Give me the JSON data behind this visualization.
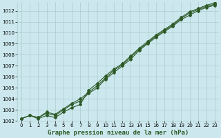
{
  "title": "Graphe pression niveau de la mer (hPa)",
  "background_color": "#cce8ee",
  "grid_color": "#aacccc",
  "line_color": "#2d5a27",
  "x_ticks": [
    0,
    1,
    2,
    3,
    4,
    5,
    6,
    7,
    8,
    9,
    10,
    11,
    12,
    13,
    14,
    15,
    16,
    17,
    18,
    19,
    20,
    21,
    22,
    23
  ],
  "ylim": [
    1002,
    1012.8
  ],
  "xlim": [
    -0.5,
    23.5
  ],
  "y_ticks": [
    1002,
    1003,
    1004,
    1005,
    1006,
    1007,
    1008,
    1009,
    1010,
    1011,
    1012
  ],
  "line1": [
    1002.2,
    1002.5,
    1002.3,
    1002.8,
    1002.6,
    1003.1,
    1003.6,
    1004.0,
    1004.6,
    1005.2,
    1005.9,
    1006.6,
    1007.1,
    1007.8,
    1008.5,
    1009.1,
    1009.7,
    1010.2,
    1010.7,
    1011.3,
    1011.8,
    1012.1,
    1012.4,
    1012.6
  ],
  "line2": [
    1002.2,
    1002.5,
    1002.2,
    1002.5,
    1002.3,
    1002.8,
    1003.2,
    1003.5,
    1004.8,
    1005.4,
    1006.1,
    1006.7,
    1007.2,
    1007.9,
    1008.6,
    1009.2,
    1009.8,
    1010.3,
    1010.8,
    1011.4,
    1011.9,
    1012.2,
    1012.5,
    1012.7
  ],
  "line3": [
    1002.2,
    1002.5,
    1002.3,
    1002.7,
    1002.5,
    1003.0,
    1003.5,
    1003.8,
    1004.5,
    1005.0,
    1005.8,
    1006.4,
    1007.0,
    1007.6,
    1008.4,
    1009.0,
    1009.6,
    1010.1,
    1010.6,
    1011.2,
    1011.6,
    1012.0,
    1012.3,
    1012.5
  ],
  "markersize": 2.0,
  "linewidth": 0.8,
  "title_fontsize": 6.5,
  "tick_fontsize": 5.0,
  "ylabel_fontsize": 5.0
}
